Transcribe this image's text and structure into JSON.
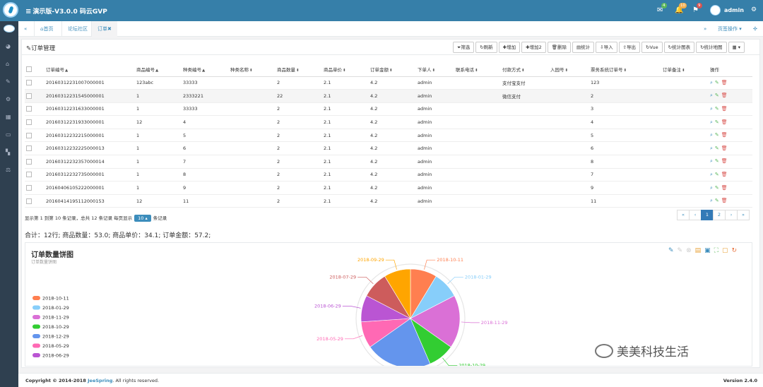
{
  "header": {
    "title": "演示版-V3.0.0 码云GVP",
    "mail_badge": "4",
    "bell_badge": "10",
    "flag_badge": "9",
    "user": "admin"
  },
  "tabs": {
    "items": [
      {
        "label": "首页",
        "icon": "home-icon"
      },
      {
        "label": "论坛社区",
        "icon": ""
      },
      {
        "label": "订单✖",
        "icon": ""
      }
    ],
    "page_ops_label": "页签操作"
  },
  "panel": {
    "title": "订单管理"
  },
  "toolbar": [
    "筛选",
    "刷新",
    "增加",
    "增加2",
    "删除",
    "统计",
    "导入",
    "导出",
    "Vue",
    "统计图表",
    "统计地图"
  ],
  "table": {
    "columns": [
      "订单编号",
      "商品编号",
      "种类编号",
      "种类名称",
      "商品数量",
      "商品单价",
      "订单金额",
      "下单人",
      "联系电话",
      "付款方式",
      "入园号",
      "票务系统订单号",
      "订单备注",
      "操作"
    ],
    "rows": [
      [
        "2016031223100700000​1",
        "123abc",
        "33333",
        "",
        "2",
        "2.1",
        "4.2",
        "admin",
        "",
        "支付宝支付",
        "",
        "123",
        ""
      ],
      [
        "20160312231545000001",
        "1",
        "2333221",
        "",
        "22",
        "2.1",
        "4.2",
        "admin",
        "",
        "微信支付",
        "",
        "2",
        ""
      ],
      [
        "20160312231633000001",
        "1",
        "33333",
        "",
        "2",
        "2.1",
        "4.2",
        "admin",
        "",
        "",
        "",
        "3",
        ""
      ],
      [
        "20160312231933000001",
        "12",
        "4",
        "",
        "2",
        "2.1",
        "4.2",
        "admin",
        "",
        "",
        "",
        "4",
        ""
      ],
      [
        "20160312232215000001",
        "1",
        "5",
        "",
        "2",
        "2.1",
        "4.2",
        "admin",
        "",
        "",
        "",
        "5",
        ""
      ],
      [
        "20160312232225000013",
        "1",
        "6",
        "",
        "2",
        "2.1",
        "4.2",
        "admin",
        "",
        "",
        "",
        "6",
        ""
      ],
      [
        "20160312232357000014",
        "1",
        "7",
        "",
        "2",
        "2.1",
        "4.2",
        "admin",
        "",
        "",
        "",
        "8",
        ""
      ],
      [
        "20160312232735000001",
        "1",
        "8",
        "",
        "2",
        "2.1",
        "4.2",
        "admin",
        "",
        "",
        "",
        "7",
        ""
      ],
      [
        "20160406105222000001",
        "1",
        "9",
        "",
        "2",
        "2.1",
        "4.2",
        "admin",
        "",
        "",
        "",
        "9",
        ""
      ],
      [
        "20160414195112000153",
        "12",
        "11",
        "",
        "2",
        "2.1",
        "4.2",
        "admin",
        "",
        "",
        "",
        "11",
        ""
      ]
    ]
  },
  "pagination": {
    "info_prefix": "显示第 1 到第 10 条记录，总共 12 条记录 每页显示",
    "page_size": "10",
    "info_suffix": "条记录",
    "pages": [
      "«",
      "‹",
      "1",
      "2",
      "›",
      "»"
    ],
    "active_page": "1"
  },
  "summary": "合计：12行; 商品数量：53.0; 商品单价：34.1; 订单金额：57.2;",
  "chart_data": {
    "type": "pie",
    "title": "订单数量饼图",
    "subtitle": "订单数量饼图",
    "legend_position": "left",
    "categories": [
      "2018-10-11",
      "2018-01-29",
      "2018-11-29",
      "2018-10-29",
      "2018-12-29",
      "2018-05-29",
      "2018-06-29",
      "2018-07-29",
      "2018-09-29"
    ],
    "values": [
      8,
      8,
      16,
      8,
      20,
      8,
      8,
      8,
      8
    ],
    "colors": [
      "#ff7f50",
      "#87cefa",
      "#da70d6",
      "#32cd32",
      "#6495ed",
      "#ff69b4",
      "#ba55d3",
      "#cd5c5c",
      "#ffa500"
    ]
  },
  "watermark": "美美科技生活",
  "footer": {
    "copyright_prefix": "Copyright © 2014-2018 ",
    "brand": "JeeSpring",
    "copyright_suffix": ". All rights reserved.",
    "version": "Version 2.4.0"
  }
}
